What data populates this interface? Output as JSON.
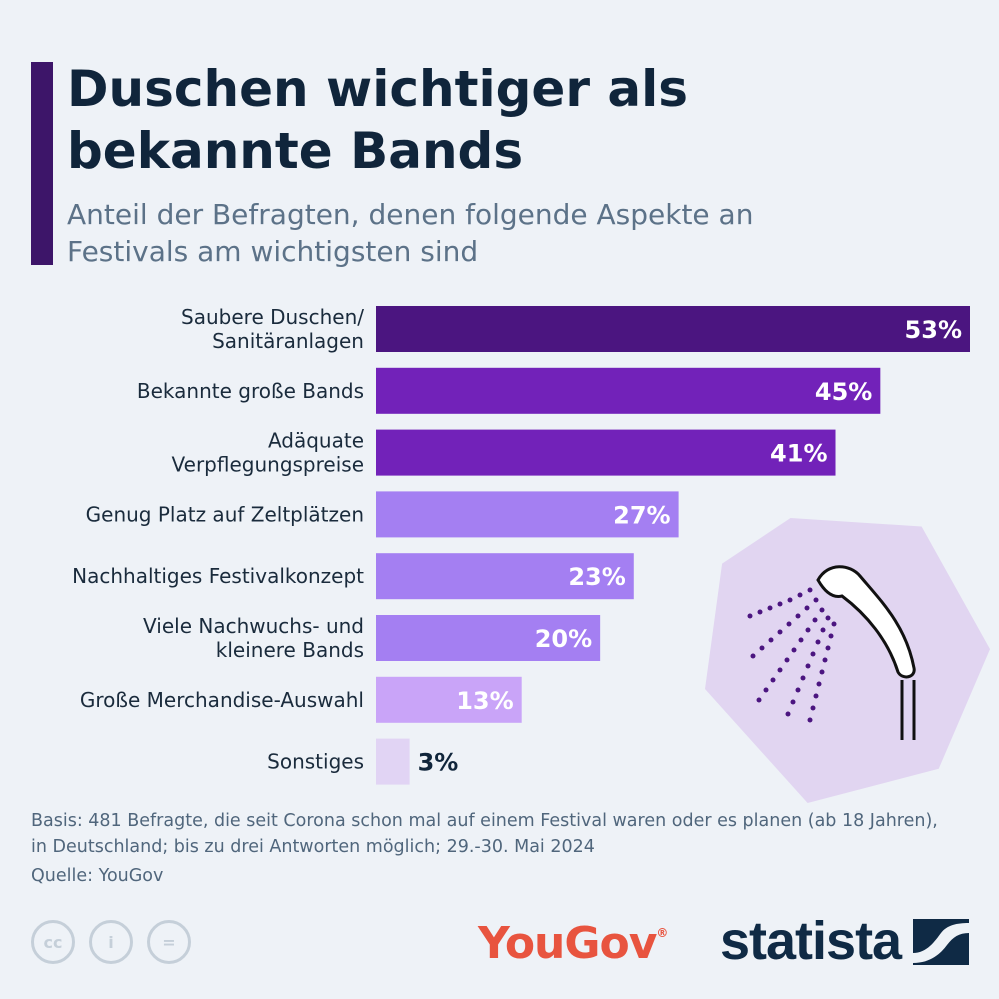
{
  "header": {
    "title": "Duschen wichtiger als bekannte Bands",
    "subtitle": "Anteil der Befragten, denen folgende Aspekte an Festivals am wichtigsten sind"
  },
  "chart_data": {
    "type": "bar",
    "orientation": "horizontal",
    "title": "Duschen wichtiger als bekannte Bands",
    "subtitle": "Anteil der Befragten, denen folgende Aspekte an Festivals am wichtigsten sind",
    "categories": [
      "Saubere Duschen/\nSanitäranlagen",
      "Bekannte große Bands",
      "Adäquate\nVerpflegungspreise",
      "Genug Platz auf Zeltplätzen",
      "Nachhaltiges Festivalkonzept",
      "Viele Nachwuchs- und\nkleinere Bands",
      "Große Merchandise-Auswahl",
      "Sonstiges"
    ],
    "values": [
      53,
      45,
      41,
      27,
      23,
      20,
      13,
      3
    ],
    "value_labels": [
      "53%",
      "45%",
      "41%",
      "27%",
      "23%",
      "20%",
      "13%",
      "3%"
    ],
    "bar_colors": [
      "#4b1580",
      "#7222b9",
      "#7222b9",
      "#a47ff2",
      "#a47ff2",
      "#a47ff2",
      "#c9a4f8",
      "#e1d4f4"
    ],
    "xlim": [
      0,
      53
    ],
    "unit": "%"
  },
  "footer": {
    "basis": "Basis: 481 Befragte, die seit Corona schon mal auf einem Festival waren oder es planen (ab 18 Jahren), in Deutschland; bis zu drei Antworten möglich; 29.-30. Mai 2024",
    "source": "Quelle: YouGov",
    "license_icons": [
      "cc",
      "i",
      "="
    ],
    "partner_logo": "YouGov",
    "brand": "statista"
  },
  "colors": {
    "accent": "#3d1569",
    "title": "#10253b",
    "subtitle": "#5c7288",
    "background": "#eef2f7",
    "yougov": "#e8543f",
    "statista": "#0f2a45"
  },
  "icons": {
    "illustration": "shower-head-icon",
    "license": [
      "cc-icon",
      "attribution-icon",
      "no-derivatives-icon"
    ],
    "brand_mark": "statista-logo-icon"
  }
}
